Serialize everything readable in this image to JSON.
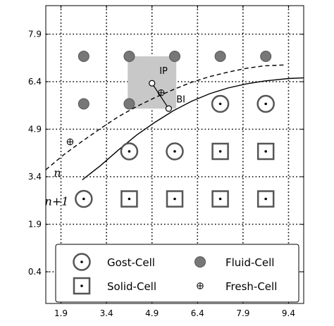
{
  "chart_data": {
    "type": "scatter",
    "xlim": [
      1.4,
      9.9
    ],
    "ylim": [
      -0.6,
      8.8
    ],
    "x_ticks": [
      1.9,
      3.4,
      4.9,
      6.4,
      7.9,
      9.4
    ],
    "y_ticks": [
      0.4,
      1.9,
      3.4,
      4.9,
      6.4,
      7.9
    ],
    "x_tick_labels": [
      "1.9",
      "3.4",
      "4.9",
      "6.4",
      "7.9",
      "9.4"
    ],
    "y_tick_labels": [
      "0.4",
      "1.9",
      "3.4",
      "4.9",
      "6.4",
      "7.9"
    ],
    "grid": true,
    "colors": {
      "fluid": "#777777",
      "marker": "#555555",
      "highlight": "#c8c8c8",
      "line": "#000000"
    },
    "highlight_box": {
      "x0": 4.1,
      "x1": 5.7,
      "y0": 5.55,
      "y1": 7.2
    },
    "fluid_cells": [
      [
        2.65,
        7.2
      ],
      [
        4.15,
        7.2
      ],
      [
        5.65,
        7.2
      ],
      [
        7.15,
        7.2
      ],
      [
        8.65,
        7.2
      ],
      [
        2.65,
        5.7
      ],
      [
        4.15,
        5.7
      ]
    ],
    "ghost_cells": [
      [
        7.15,
        5.7
      ],
      [
        8.65,
        5.7
      ],
      [
        4.15,
        4.2
      ],
      [
        5.65,
        4.2
      ],
      [
        2.65,
        2.7
      ]
    ],
    "solid_cells": [
      [
        7.15,
        4.2
      ],
      [
        8.65,
        4.2
      ],
      [
        4.15,
        2.7
      ],
      [
        5.65,
        2.7
      ],
      [
        7.15,
        2.7
      ],
      [
        8.65,
        2.7
      ]
    ],
    "fresh_cells": [
      [
        2.2,
        4.5
      ],
      [
        5.2,
        6.05
      ]
    ],
    "ip_point": [
      4.9,
      6.35
    ],
    "bi_point": [
      5.45,
      5.55
    ],
    "series": [
      {
        "name": "n",
        "dash": true,
        "x": [
          1.4,
          2.0,
          2.6,
          3.2,
          3.8,
          4.4,
          5.0,
          5.6,
          6.2,
          6.8,
          7.4,
          8.0,
          8.6,
          9.3
        ],
        "y": [
          3.62,
          4.1,
          4.52,
          4.92,
          5.3,
          5.62,
          5.9,
          6.15,
          6.38,
          6.56,
          6.7,
          6.82,
          6.9,
          6.93
        ]
      },
      {
        "name": "n+1",
        "dash": false,
        "x": [
          2.6,
          3.2,
          3.8,
          4.4,
          5.0,
          5.6,
          6.2,
          6.8,
          7.4,
          8.0,
          8.6,
          9.4,
          9.9
        ],
        "y": [
          3.3,
          3.75,
          4.25,
          4.72,
          5.12,
          5.48,
          5.78,
          6.02,
          6.2,
          6.33,
          6.42,
          6.5,
          6.52
        ]
      }
    ],
    "curve_labels": [
      {
        "text": "n",
        "x": 1.78,
        "y": 3.4
      },
      {
        "text": "n+1",
        "x": 1.76,
        "y": 2.5
      }
    ],
    "point_labels": [
      {
        "text": "IP",
        "x": 5.28,
        "y": 6.65
      },
      {
        "text": "BI",
        "x": 5.85,
        "y": 5.75
      }
    ],
    "legend": {
      "placement": "bottom",
      "entries": [
        {
          "marker": "ghost",
          "label": "Gost-Cell"
        },
        {
          "marker": "fluid",
          "label": "Fluid-Cell"
        },
        {
          "marker": "solid",
          "label": "Solid-Cell"
        },
        {
          "marker": "fresh",
          "label": "Fresh-Cell"
        }
      ]
    }
  }
}
